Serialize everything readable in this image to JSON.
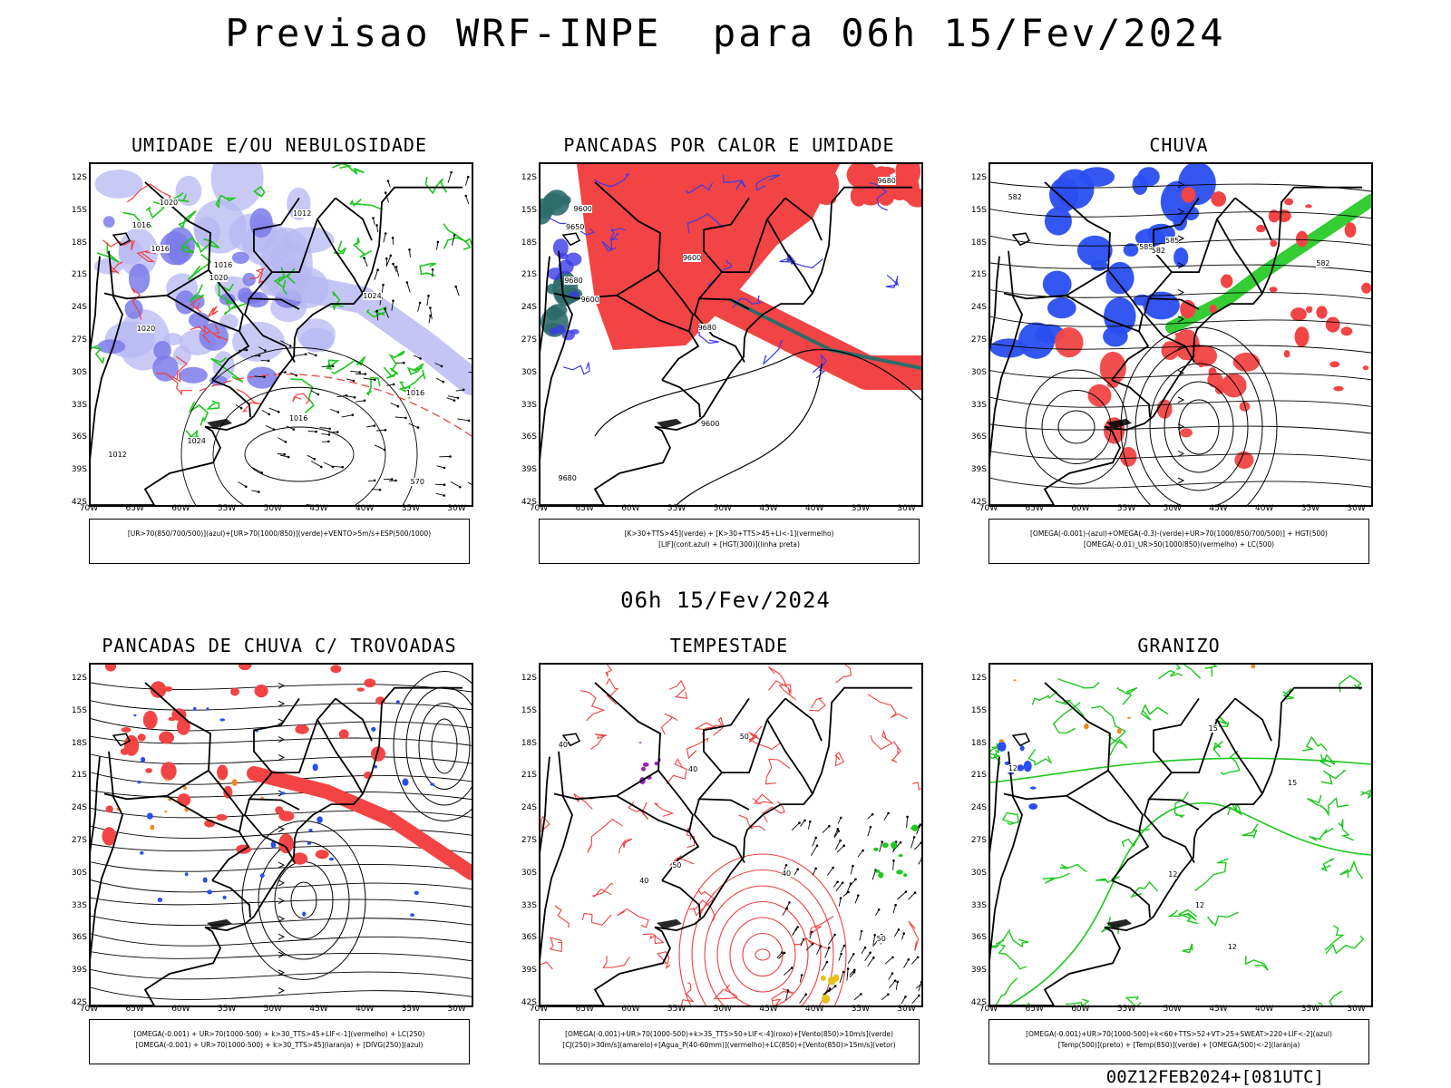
{
  "title": "Previsao WRF-INPE  para 06h 15/Fev/2024",
  "subtitle": "06h 15/Fev/2024",
  "footer": "00Z12FEB2024+[081UTC]",
  "lat_labels": [
    "12S",
    "15S",
    "18S",
    "21S",
    "24S",
    "27S",
    "30S",
    "33S",
    "36S",
    "39S",
    "42S"
  ],
  "lon_labels": [
    "70W",
    "65W",
    "60W",
    "55W",
    "50W",
    "45W",
    "40W",
    "35W",
    "30W"
  ],
  "panels": [
    {
      "title": "UMIDADE E/OU NEBULOSIDADE",
      "legend": [
        "[UR>70(850/700/500)](azul)+[UR>70(1000/850)](verde)+VENTO>5m/s+ESP(500/1000)"
      ],
      "contour_labels": [
        "1012",
        "1016",
        "1016",
        "1012",
        "1016",
        "1016",
        "1020",
        "1024",
        "1024",
        "1020",
        "1020",
        "1016",
        "570"
      ],
      "colors": {
        "fill1": "#7b7bea",
        "fill2": "#b7b7f3",
        "line1": "#1ec81e",
        "line2": "#f04040"
      }
    },
    {
      "title": "PANCADAS POR CALOR E UMIDADE",
      "legend": [
        "[K>30+TTS>45](verde) + [K>30+TTS>45+LI<-1](vermelho)",
        "[LIF](cont.azul) + [HGT(300)](linha preta)"
      ],
      "contour_labels": [
        "9680",
        "9680",
        "9680",
        "9650",
        "9600",
        "9680",
        "9600",
        "9600",
        "9600"
      ],
      "colors": {
        "fill1": "#f24444",
        "fill2": "#2f6b6b",
        "line1": "#3a3ae8"
      }
    },
    {
      "title": "CHUVA",
      "legend": [
        "[OMEGA(-0.001)-(azul)+OMEGA(-0.3)-(verde)+UR>70(1000/850/700/500)] + HGT(500)",
        "[OMEGA(-0.01)_UR>50(1000/850)(vermelho) + LC(500)"
      ],
      "contour_labels": [
        "582",
        "585",
        "582",
        "585",
        "582"
      ],
      "colors": {
        "fill1": "#2a4ef0",
        "fill2": "#f24444",
        "fill3": "#1ec81e"
      }
    },
    {
      "title": "PANCADAS DE CHUVA C/ TROVOADAS",
      "legend": [
        "[OMEGA(-0.001) + UR>70(1000-500) + k>30_TTS>45+LIF<-1](vermelho) + LC(250)",
        "[OMEGA(-0.001) + UR>70(1000-500) + k>30_TTS>45](laranja) + [DIVG(250)](azul)"
      ],
      "contour_labels": [],
      "colors": {
        "fill1": "#f24444",
        "fill2": "#2a4ef0",
        "fill3": "#f08a1e"
      }
    },
    {
      "title": "TEMPESTADE",
      "legend": [
        "[OMEGA(-0.001)+UR>70(1000-500)+k>35_TTS>50+LIF<-4](roxo)+[Vento(850)>10m/s](verde)",
        "[CJ(250)>30m/s](amarelo)+[Agua_P(40-60mm)](vermelho)+LC(850)+[Vento(850)>15m/s](vetor)"
      ],
      "contour_labels": [
        "40",
        "40",
        "50",
        "40",
        "50",
        "40",
        "50"
      ],
      "colors": {
        "line1": "#f04040",
        "fill1": "#a020c0",
        "fill2": "#1ec81e",
        "fill3": "#e8c020"
      }
    },
    {
      "title": "GRANIZO",
      "legend": [
        "[OMEGA(-0.001)+UR>70(1000-500)+k<60+TTS>52+VT>25+SWEAT>220+LIF<-2](azul)",
        "[Temp(500)](preto) + [Temp(850)](verde) + [OMEGA(500)<-2](laranja)"
      ],
      "contour_labels": [
        "12",
        "12",
        "12",
        "15",
        "15",
        "12"
      ],
      "colors": {
        "line1": "#1ec81e",
        "fill1": "#2a4ef0",
        "fill2": "#f08a1e"
      }
    }
  ]
}
